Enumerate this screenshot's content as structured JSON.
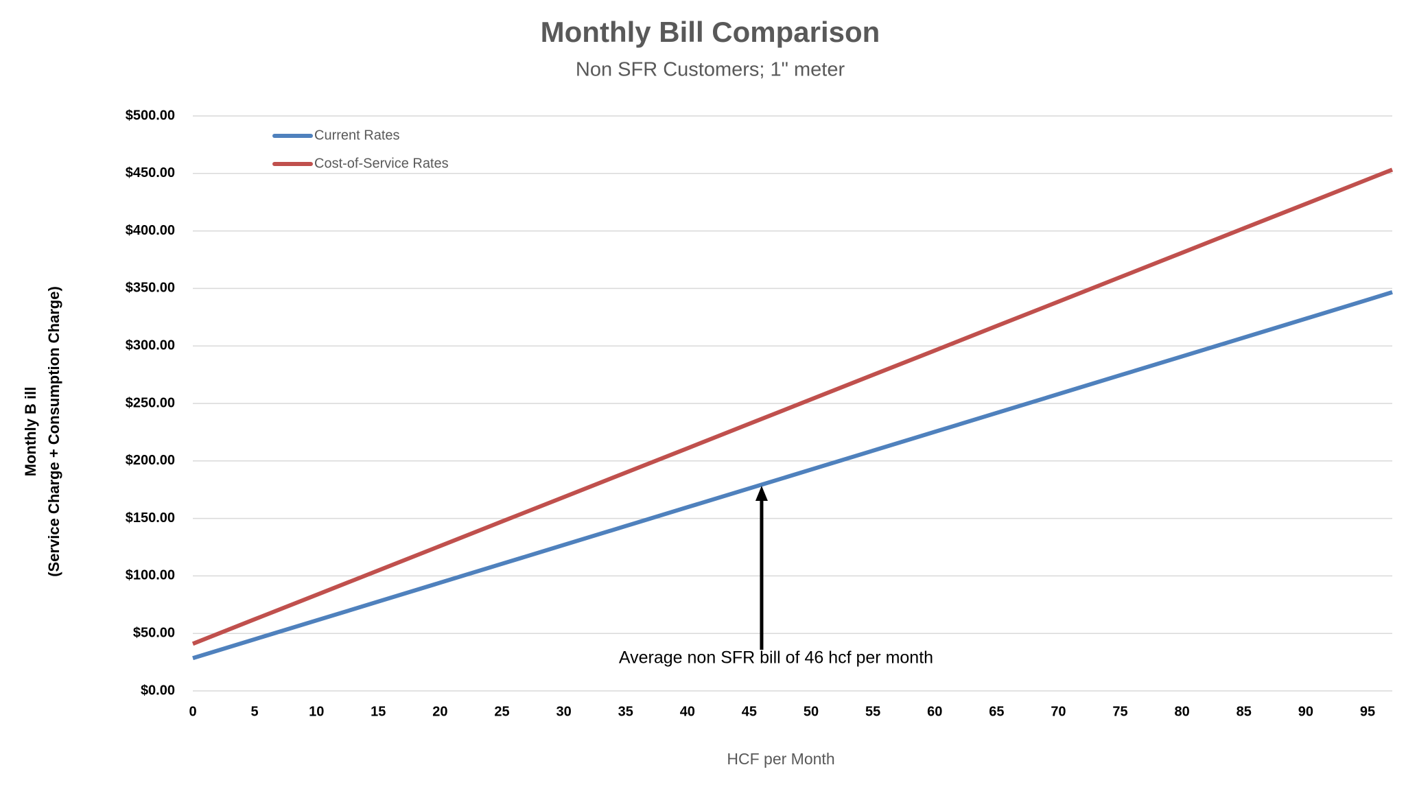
{
  "chart_data": {
    "type": "line",
    "title": "Monthly Bill Comparison",
    "subtitle": "Non SFR Customers; 1\" meter",
    "xlabel": "HCF per Month",
    "ylabel": [
      "Monthly B ill",
      "(Service Charge + Consumption Charge)"
    ],
    "x": [
      0,
      5,
      10,
      15,
      20,
      25,
      30,
      35,
      40,
      45,
      50,
      55,
      60,
      65,
      70,
      75,
      80,
      85,
      90,
      95,
      97
    ],
    "series": [
      {
        "name": "Current Rates",
        "color": "#4f81bd",
        "values": [
          28.5,
          44.9,
          61.3,
          77.7,
          94.1,
          110.5,
          126.9,
          143.3,
          159.7,
          176.1,
          192.5,
          208.9,
          225.3,
          241.7,
          258.1,
          274.5,
          290.9,
          307.3,
          323.7,
          340.1,
          346.7
        ]
      },
      {
        "name": "Cost-of-Service Rates",
        "color": "#c0504d",
        "values": [
          41,
          62.3,
          83.5,
          104.8,
          126,
          147.3,
          168.5,
          189.8,
          211,
          232.3,
          253.5,
          274.8,
          296,
          317.3,
          338.5,
          359.8,
          381,
          402.3,
          423.5,
          444.8,
          453.3
        ]
      }
    ],
    "xlim": [
      0,
      97
    ],
    "xticks": [
      0,
      5,
      10,
      15,
      20,
      25,
      30,
      35,
      40,
      45,
      50,
      55,
      60,
      65,
      70,
      75,
      80,
      85,
      90,
      95
    ],
    "ylim": [
      0,
      500
    ],
    "yticks": [
      {
        "value": 0,
        "label": "$0.00"
      },
      {
        "value": 50,
        "label": "$50.00"
      },
      {
        "value": 100,
        "label": "$100.00"
      },
      {
        "value": 150,
        "label": "$150.00"
      },
      {
        "value": 200,
        "label": "$200.00"
      },
      {
        "value": 250,
        "label": "$250.00"
      },
      {
        "value": 300,
        "label": "$300.00"
      },
      {
        "value": 350,
        "label": "$350.00"
      },
      {
        "value": 400,
        "label": "$400.00"
      },
      {
        "value": 450,
        "label": "$450.00"
      },
      {
        "value": 500,
        "label": "$500.00"
      }
    ],
    "grid": true,
    "legend": "upper left",
    "annotation": {
      "text": "Average non SFR bill of 46 hcf per month",
      "x": 46
    }
  }
}
